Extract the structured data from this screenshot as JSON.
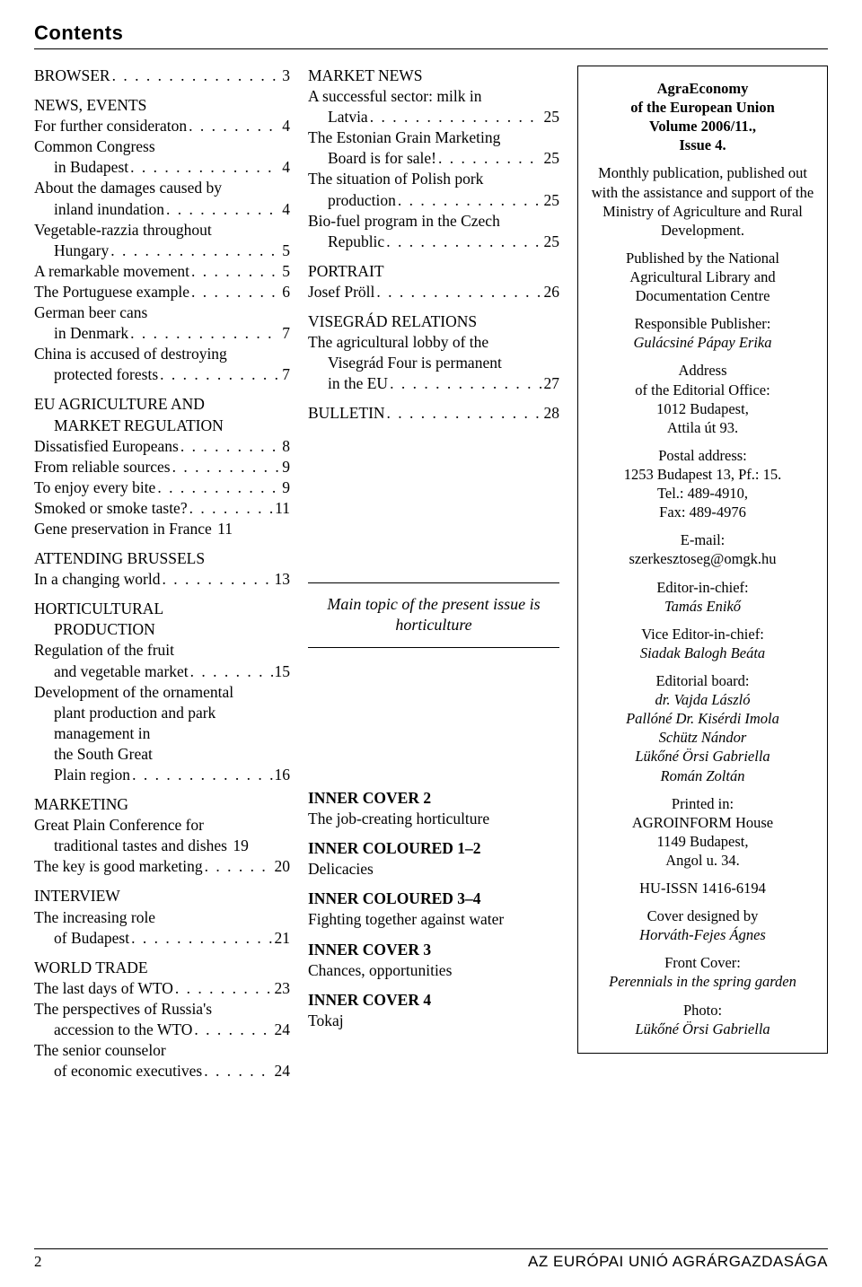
{
  "title": "Contents",
  "col1": {
    "s1": {
      "head": "BROWSER",
      "page": "3"
    },
    "s2": {
      "head": "NEWS, EVENTS",
      "items": [
        {
          "l1": "For further consideraton",
          "page": "4"
        },
        {
          "l1": "Common Congress",
          "l2": "in Budapest",
          "page": "4"
        },
        {
          "l1": "About the damages caused by",
          "l2": "inland inundation",
          "page": "4"
        },
        {
          "l1": "Vegetable-razzia throughout",
          "l2": "Hungary",
          "page": "5"
        },
        {
          "l1": "A remarkable movement",
          "page": "5"
        },
        {
          "l1": "The Portuguese example",
          "page": "6"
        },
        {
          "l1": "German beer cans",
          "l2": "in Denmark",
          "page": "7"
        },
        {
          "l1": "China is accused of destroying",
          "l2": "protected forests",
          "page": "7"
        }
      ]
    },
    "s3": {
      "head1": "EU AGRICULTURE AND",
      "head2": "MARKET REGULATION",
      "items": [
        {
          "l1": "Dissatisfied Europeans",
          "page": "8"
        },
        {
          "l1": "From reliable sources",
          "page": "9"
        },
        {
          "l1": "To enjoy every bite",
          "page": "9"
        },
        {
          "l1": "Smoked or smoke taste?",
          "page": "11"
        },
        {
          "l1": "Gene preservation in France",
          "page": "11",
          "tight": true
        }
      ]
    },
    "s4": {
      "head": "ATTENDING BRUSSELS",
      "items": [
        {
          "l1": "In a changing world",
          "page": "13"
        }
      ]
    },
    "s5": {
      "head1": "HORTICULTURAL",
      "head2": "PRODUCTION",
      "items": [
        {
          "l1": "Regulation of the fruit",
          "l2": "and vegetable market",
          "page": "15"
        },
        {
          "l1": "Development of the ornamental",
          "l2": "plant production and park",
          "l3": "management in",
          "l4": "the South Great",
          "l5": "Plain region",
          "page": "16"
        }
      ]
    },
    "s6": {
      "head": "MARKETING",
      "items": [
        {
          "l1": "Great Plain Conference for",
          "l2": "traditional tastes and dishes",
          "page": "19",
          "tight": true
        },
        {
          "l1": "The key is good marketing",
          "page": "20"
        }
      ]
    },
    "s7": {
      "head": "INTERVIEW",
      "items": [
        {
          "l1": "The increasing role",
          "l2": "of Budapest",
          "page": "21"
        }
      ]
    },
    "s8": {
      "head": "WORLD TRADE",
      "items": [
        {
          "l1": "The last days of  WTO",
          "page": "23"
        },
        {
          "l1": "The perspectives of Russia's",
          "l2": "accession to the WTO",
          "page": "24"
        },
        {
          "l1": "The senior counselor",
          "l2": "of economic executives",
          "page": "24"
        }
      ]
    }
  },
  "col2": {
    "s1": {
      "head": "MARKET NEWS",
      "items": [
        {
          "l1": "A successful sector: milk in",
          "l2": "Latvia",
          "page": "25"
        },
        {
          "l1": "The Estonian Grain Marketing",
          "l2": "Board is for sale!",
          "page": "25"
        },
        {
          "l1": "The situation of Polish pork",
          "l2": "production",
          "page": "25"
        },
        {
          "l1": "Bio-fuel program in the Czech",
          "l2": "Republic",
          "page": "25"
        }
      ]
    },
    "s2": {
      "head": "PORTRAIT",
      "items": [
        {
          "l1": "Josef Pröll",
          "page": "26"
        }
      ]
    },
    "s3": {
      "head": "VISEGRÁD RELATIONS",
      "items": [
        {
          "l1": "The agricultural lobby of the",
          "l2": "Visegrád Four is permanent",
          "l3": "in the EU",
          "page": "27"
        }
      ]
    },
    "s4": {
      "head": "BULLETIN",
      "page": "28"
    },
    "topic": {
      "l1": "Main topic of the present issue is",
      "l2": "horticulture"
    },
    "covers": {
      "ic2": {
        "head": "INNER COVER 2",
        "text": "The job-creating horticulture"
      },
      "icc12": {
        "head": "INNER COLOURED 1–2",
        "text": "Delicacies"
      },
      "icc34": {
        "head": "INNER COLOURED 3–4",
        "text": "Fighting together against water"
      },
      "ic3": {
        "head": "INNER COVER 3",
        "text": "Chances, opportunities"
      },
      "ic4": {
        "head": "INNER COVER 4",
        "text": "Tokaj"
      }
    }
  },
  "info": {
    "title1": "AgraEconomy",
    "title2": "of the European Union",
    "title3": "Volume 2006/11.,",
    "title4": "Issue 4.",
    "p1": "Monthly publication, published out with the assistance and support of the Ministry of Agriculture and Rural Development.",
    "p2": "Published by the National Agricultural Library and Documentation Centre",
    "resp_lbl": "Responsible Publisher:",
    "resp_val": "Gulácsiné Pápay Erika",
    "addr_lbl": "Address",
    "addr_l2": "of the Editorial Office:",
    "addr_l3": "1012 Budapest,",
    "addr_l4": "Attila út 93.",
    "post_lbl": "Postal address:",
    "post_l2": "1253 Budapest 13, Pf.: 15.",
    "post_l3": "Tel.: 489-4910,",
    "post_l4": "Fax: 489-4976",
    "email_lbl": "E-mail:",
    "email_val": "szerkesztoseg@omgk.hu",
    "eic_lbl": "Editor-in-chief:",
    "eic_val": "Tamás Enikő",
    "veic_lbl": "Vice Editor-in-chief:",
    "veic_val": "Siadak Balogh Beáta",
    "board_lbl": "Editorial board:",
    "board_l1": "dr. Vajda László",
    "board_l2": "Pallóné Dr. Kisérdi Imola",
    "board_l3": "Schütz Nándor",
    "board_l4": "Lükőné Örsi Gabriella",
    "board_l5": "Román Zoltán",
    "print_lbl": "Printed in:",
    "print_l2": "AGROINFORM House",
    "print_l3": "1149 Budapest,",
    "print_l4": "Angol u. 34.",
    "issn": "HU-ISSN 1416-6194",
    "cover_lbl": "Cover designed by",
    "cover_val": "Horváth-Fejes Ágnes",
    "fc_lbl": "Front Cover:",
    "fc_val": "Perennials in the spring garden",
    "photo_lbl": "Photo:",
    "photo_val": "Lükőné Örsi Gabriella"
  },
  "footer": {
    "page": "2",
    "pub": "AZ EURÓPAI UNIÓ AGRÁRGAZDASÁGA"
  }
}
